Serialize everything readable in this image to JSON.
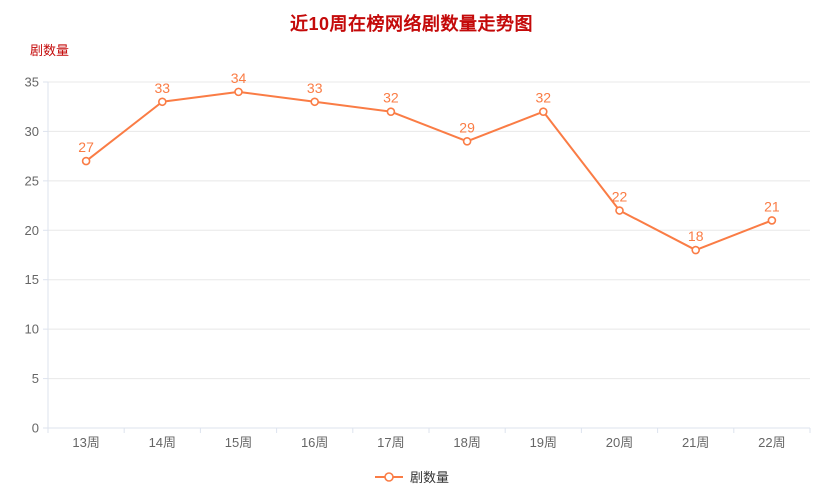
{
  "chart_data": {
    "type": "line",
    "title": "近10周在榜网络剧数量走势图",
    "y_axis_name": "剧数量",
    "xlabel": "",
    "ylabel": "剧数量",
    "categories": [
      "13周",
      "14周",
      "15周",
      "16周",
      "17周",
      "18周",
      "19周",
      "20周",
      "21周",
      "22周"
    ],
    "series": [
      {
        "name": "剧数量",
        "values": [
          27,
          33,
          34,
          33,
          32,
          29,
          32,
          22,
          18,
          21
        ]
      }
    ],
    "ylim": [
      0,
      35
    ],
    "ytick_step": 5,
    "grid": true,
    "legend": {
      "position": "bottom",
      "items": [
        "剧数量"
      ]
    },
    "marker": "open-circle",
    "colors": {
      "line": "#fa7c45",
      "data_label": "#fa7c45",
      "title": "#c40a0a",
      "axis_name": "#c40a0a",
      "axis_line": "#dde3ee",
      "axis_text": "#666666",
      "grid_line": "#e8e8e8",
      "marker_fill": "#ffffff",
      "legend_text": "#333333",
      "background": "#ffffff"
    }
  }
}
